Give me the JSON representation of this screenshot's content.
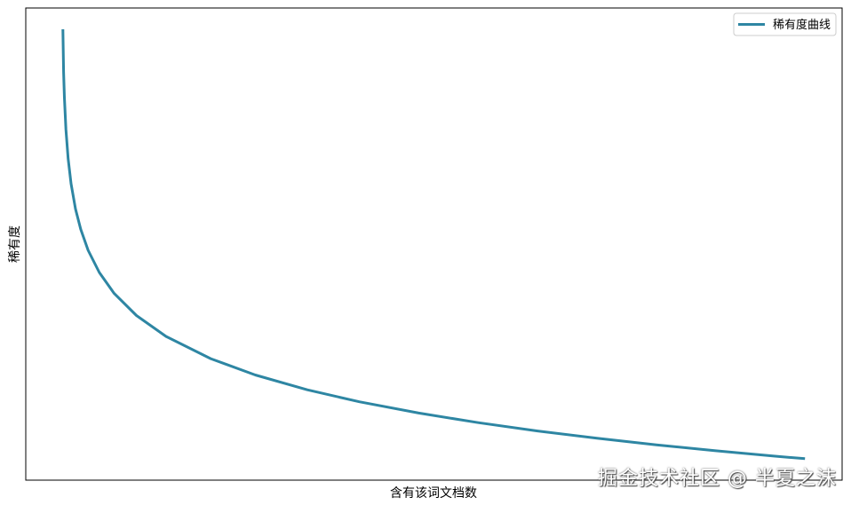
{
  "chart_data": {
    "type": "line",
    "title": "",
    "xlabel": "含有该词文档数",
    "ylabel": "稀有度",
    "xlim": [
      -49,
      1050
    ],
    "ylim": [
      -0.345,
      7.25
    ],
    "grid": false,
    "ticks_visible": false,
    "legend_position": "top-right",
    "series": [
      {
        "name": "稀有度曲线",
        "color": "#2e86a3",
        "x": [
          1,
          2,
          3,
          5,
          8,
          12,
          18,
          25,
          35,
          50,
          70,
          100,
          140,
          200,
          260,
          330,
          400,
          480,
          560,
          640,
          720,
          800,
          880,
          960,
          1000
        ],
        "y": [
          6.908,
          6.215,
          5.809,
          5.298,
          4.828,
          4.423,
          4.017,
          3.689,
          3.352,
          2.996,
          2.659,
          2.303,
          1.966,
          1.609,
          1.347,
          1.109,
          0.916,
          0.734,
          0.58,
          0.446,
          0.329,
          0.223,
          0.128,
          0.041,
          0
        ]
      }
    ]
  },
  "watermark": "掘金技术社区 @ 半夏之沫"
}
